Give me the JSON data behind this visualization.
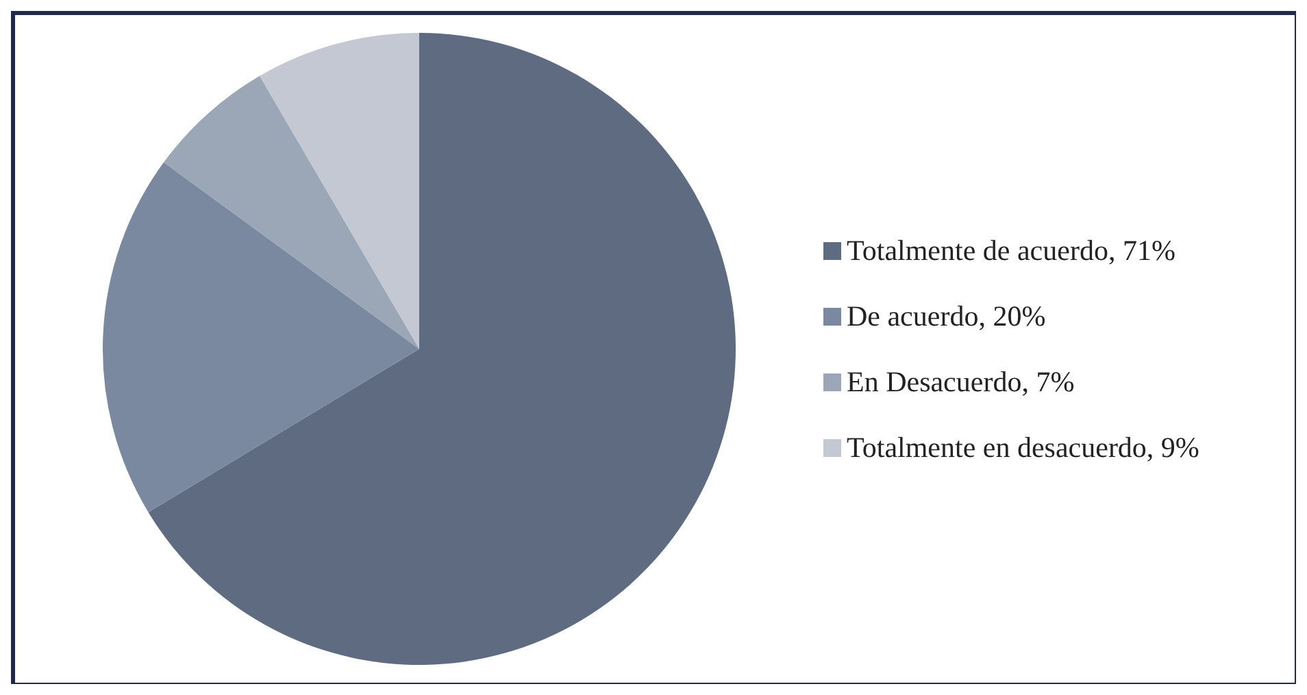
{
  "chart_data": {
    "type": "pie",
    "categories": [
      "Totalmente de acuerdo, 71%",
      "De acuerdo, 20%",
      "En Desacuerdo, 7%",
      "Totalmente en desacuerdo, 9%"
    ],
    "values": [
      71,
      20,
      7,
      9
    ],
    "colors": [
      "#5f6b80",
      "#7a899f",
      "#9ba6b6",
      "#c3c8d3"
    ],
    "legend": "right"
  }
}
